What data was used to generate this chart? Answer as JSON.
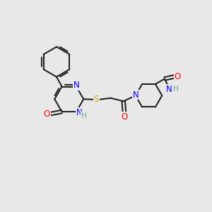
{
  "background_color": "#e8e8e8",
  "bond_color": "#1a1a1a",
  "nitrogen_color": "#0000ff",
  "oxygen_color": "#ff0000",
  "sulfur_color": "#ccaa00",
  "nh_color": "#5aaa99",
  "figsize": [
    3.0,
    3.0
  ],
  "dpi": 100,
  "xlim": [
    0,
    12
  ],
  "ylim": [
    0,
    12
  ]
}
